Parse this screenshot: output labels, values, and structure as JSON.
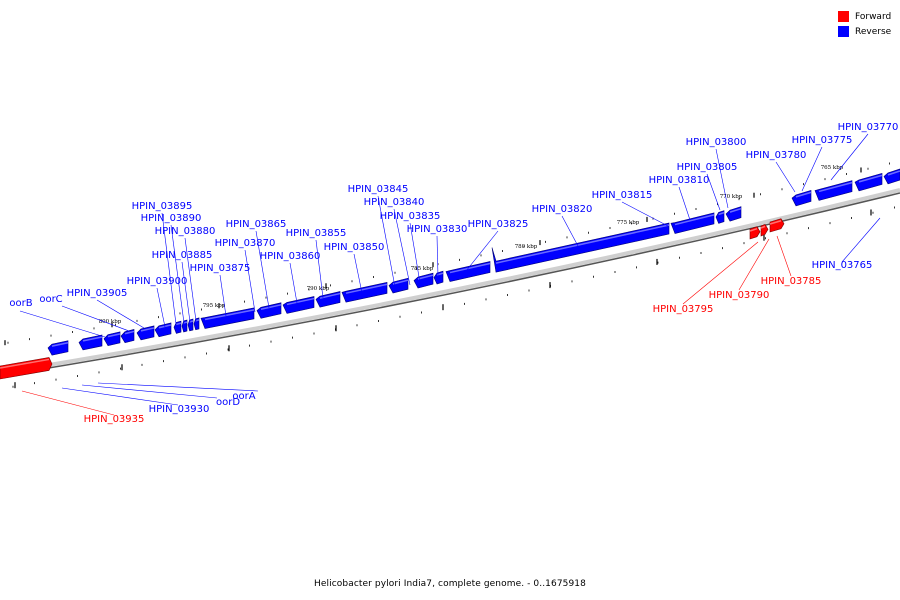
{
  "legend": {
    "forward_label": "Forward",
    "reverse_label": "Reverse",
    "forward_color": "#ff0000",
    "reverse_color": "#0000ff"
  },
  "caption": "Helicobacter pylori India7, complete genome. - 0..1675918",
  "scale_labels": [
    "765 kbp",
    "770 kbp",
    "775 kbp",
    "780 kbp",
    "785 kbp",
    "790 kbp",
    "795 kbp",
    "800 kbp"
  ],
  "reverse_labels": [
    "HPIN_03770",
    "HPIN_03775",
    "HPIN_03780",
    "HPIN_03800",
    "HPIN_03805",
    "HPIN_03810",
    "HPIN_03815",
    "HPIN_03820",
    "HPIN_03825",
    "HPIN_03830",
    "HPIN_03835",
    "HPIN_03840",
    "HPIN_03845",
    "HPIN_03850",
    "HPIN_03855",
    "HPIN_03860",
    "HPIN_03865",
    "HPIN_03870",
    "HPIN_03875",
    "HPIN_03880",
    "HPIN_03885",
    "HPIN_03890",
    "HPIN_03895",
    "HPIN_03900",
    "HPIN_03905",
    "oorC",
    "oorB",
    "oorA",
    "oorD",
    "HPIN_03930",
    "HPIN_03765"
  ],
  "forward_labels": [
    "HPIN_03785",
    "HPIN_03790",
    "HPIN_03795",
    "HPIN_03935"
  ]
}
